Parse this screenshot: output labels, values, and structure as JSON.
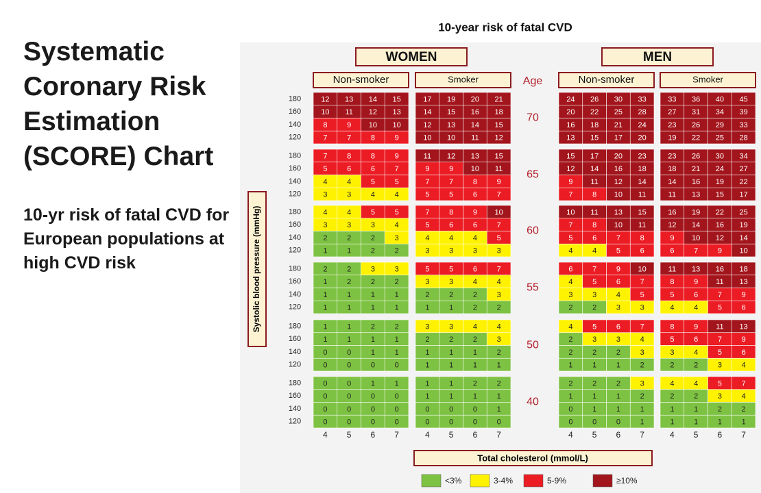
{
  "title": "Systematic Coronary Risk Estimation (SCORE) Chart",
  "subtitle": "10-yr risk of fatal CVD for European populations at high CVD risk",
  "table": {
    "title": "10-year risk of fatal CVD",
    "age_header": "Age",
    "y_label": "Systolic blood pressure (mmHg)",
    "x_label": "Total cholesterol (mmol/L)",
    "sexes": [
      {
        "name": "WOMEN"
      },
      {
        "name": "MEN"
      }
    ],
    "groups": [
      {
        "name": "Non-smoker"
      },
      {
        "name": "Smoker"
      },
      {
        "name": "Non-smoker"
      },
      {
        "name": "Smoker"
      }
    ],
    "sbp": [
      180,
      160,
      140,
      120
    ],
    "cholesterol": [
      4,
      5,
      6,
      7
    ],
    "legend": [
      {
        "label": "<3%",
        "color": "#7dc242"
      },
      {
        "label": "3-4%",
        "color": "#fff200",
        "min": 3
      },
      {
        "label": "5-9%",
        "color": "#ec1c24",
        "min": 5
      },
      {
        "label": "≥10%",
        "color": "#a3151c",
        "min": 10
      }
    ],
    "ages": [
      {
        "age": 70,
        "values": [
          [
            [
              12,
              13,
              14,
              15
            ],
            [
              10,
              11,
              12,
              13
            ],
            [
              8,
              9,
              10,
              10
            ],
            [
              7,
              7,
              8,
              9
            ]
          ],
          [
            [
              17,
              19,
              20,
              21
            ],
            [
              14,
              15,
              16,
              18
            ],
            [
              12,
              13,
              14,
              15
            ],
            [
              10,
              10,
              11,
              12
            ]
          ],
          [
            [
              24,
              26,
              30,
              33
            ],
            [
              20,
              22,
              25,
              28
            ],
            [
              16,
              18,
              21,
              24
            ],
            [
              13,
              15,
              17,
              20
            ]
          ],
          [
            [
              33,
              36,
              40,
              45
            ],
            [
              27,
              31,
              34,
              39
            ],
            [
              23,
              26,
              29,
              33
            ],
            [
              19,
              22,
              25,
              28
            ]
          ]
        ]
      },
      {
        "age": 65,
        "values": [
          [
            [
              7,
              8,
              8,
              9
            ],
            [
              5,
              6,
              6,
              7
            ],
            [
              4,
              4,
              5,
              5
            ],
            [
              3,
              3,
              4,
              4
            ]
          ],
          [
            [
              11,
              12,
              13,
              15
            ],
            [
              9,
              9,
              10,
              11
            ],
            [
              7,
              7,
              8,
              9
            ],
            [
              5,
              5,
              6,
              7
            ]
          ],
          [
            [
              15,
              17,
              20,
              23
            ],
            [
              12,
              14,
              16,
              18
            ],
            [
              9,
              11,
              12,
              14
            ],
            [
              7,
              8,
              10,
              11
            ]
          ],
          [
            [
              23,
              26,
              30,
              34
            ],
            [
              18,
              21,
              24,
              27
            ],
            [
              14,
              16,
              19,
              22
            ],
            [
              11,
              13,
              15,
              17
            ]
          ]
        ]
      },
      {
        "age": 60,
        "values": [
          [
            [
              4,
              4,
              5,
              5
            ],
            [
              3,
              3,
              3,
              4
            ],
            [
              2,
              2,
              2,
              3
            ],
            [
              1,
              1,
              2,
              2
            ]
          ],
          [
            [
              7,
              8,
              9,
              10
            ],
            [
              5,
              6,
              6,
              7
            ],
            [
              4,
              4,
              4,
              5
            ],
            [
              3,
              3,
              3,
              3
            ]
          ],
          [
            [
              10,
              11,
              13,
              15
            ],
            [
              7,
              8,
              10,
              11
            ],
            [
              5,
              6,
              7,
              8
            ],
            [
              4,
              4,
              5,
              6
            ]
          ],
          [
            [
              16,
              19,
              22,
              25
            ],
            [
              12,
              14,
              16,
              19
            ],
            [
              9,
              10,
              12,
              14
            ],
            [
              6,
              7,
              9,
              10
            ]
          ]
        ]
      },
      {
        "age": 55,
        "values": [
          [
            [
              2,
              2,
              3,
              3
            ],
            [
              1,
              2,
              2,
              2
            ],
            [
              1,
              1,
              1,
              1
            ],
            [
              1,
              1,
              1,
              1
            ]
          ],
          [
            [
              5,
              5,
              6,
              7
            ],
            [
              3,
              3,
              4,
              4
            ],
            [
              2,
              2,
              2,
              3
            ],
            [
              1,
              1,
              2,
              2
            ]
          ],
          [
            [
              6,
              7,
              9,
              10
            ],
            [
              4,
              5,
              6,
              7
            ],
            [
              3,
              3,
              4,
              5
            ],
            [
              2,
              2,
              3,
              3
            ]
          ],
          [
            [
              11,
              13,
              16,
              18
            ],
            [
              8,
              9,
              11,
              13
            ],
            [
              5,
              6,
              7,
              9
            ],
            [
              4,
              4,
              5,
              6
            ]
          ]
        ]
      },
      {
        "age": 50,
        "values": [
          [
            [
              1,
              1,
              2,
              2
            ],
            [
              1,
              1,
              1,
              1
            ],
            [
              0,
              0,
              1,
              1
            ],
            [
              0,
              0,
              0,
              0
            ]
          ],
          [
            [
              3,
              3,
              4,
              4
            ],
            [
              2,
              2,
              2,
              3
            ],
            [
              1,
              1,
              1,
              2
            ],
            [
              1,
              1,
              1,
              1
            ]
          ],
          [
            [
              4,
              5,
              6,
              7
            ],
            [
              2,
              3,
              3,
              4
            ],
            [
              2,
              2,
              2,
              3
            ],
            [
              1,
              1,
              1,
              2
            ]
          ],
          [
            [
              8,
              9,
              11,
              13
            ],
            [
              5,
              6,
              7,
              9
            ],
            [
              3,
              4,
              5,
              6
            ],
            [
              2,
              2,
              3,
              4
            ]
          ]
        ]
      },
      {
        "age": 40,
        "values": [
          [
            [
              0,
              0,
              1,
              1
            ],
            [
              0,
              0,
              0,
              0
            ],
            [
              0,
              0,
              0,
              0
            ],
            [
              0,
              0,
              0,
              0
            ]
          ],
          [
            [
              1,
              1,
              2,
              2
            ],
            [
              1,
              1,
              1,
              1
            ],
            [
              0,
              0,
              0,
              1
            ],
            [
              0,
              0,
              0,
              0
            ]
          ],
          [
            [
              2,
              2,
              2,
              3
            ],
            [
              1,
              1,
              1,
              2
            ],
            [
              0,
              1,
              1,
              1
            ],
            [
              0,
              0,
              0,
              1
            ]
          ],
          [
            [
              4,
              4,
              5,
              7
            ],
            [
              2,
              2,
              3,
              4
            ],
            [
              1,
              1,
              2,
              2
            ],
            [
              1,
              1,
              1,
              1
            ]
          ]
        ]
      }
    ]
  }
}
